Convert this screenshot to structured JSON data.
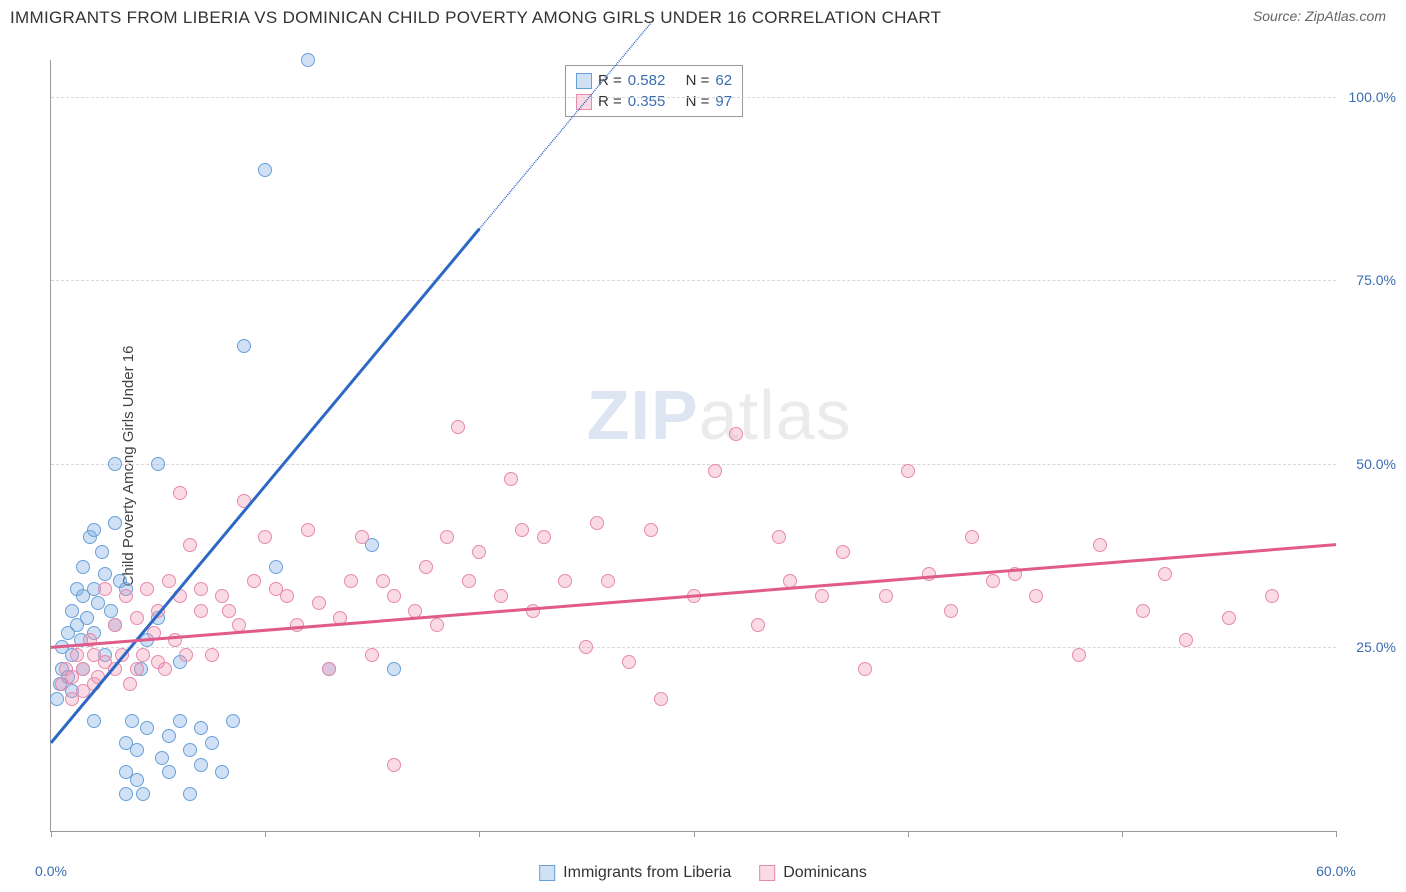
{
  "header": {
    "title": "IMMIGRANTS FROM LIBERIA VS DOMINICAN CHILD POVERTY AMONG GIRLS UNDER 16 CORRELATION CHART",
    "source_prefix": "Source: ",
    "source": "ZipAtlas.com"
  },
  "watermark": {
    "zip": "ZIP",
    "atlas": "atlas"
  },
  "y_axis": {
    "label": "Child Poverty Among Girls Under 16"
  },
  "chart": {
    "type": "scatter",
    "xlim": [
      0,
      60
    ],
    "ylim": [
      0,
      105
    ],
    "x_ticks": [
      0,
      10,
      20,
      30,
      40,
      50,
      60
    ],
    "x_tick_labels": {
      "0": "0.0%",
      "60": "60.0%"
    },
    "y_gridlines": [
      25,
      50,
      75,
      100
    ],
    "y_tick_labels": {
      "25": "25.0%",
      "50": "50.0%",
      "75": "75.0%",
      "100": "100.0%"
    },
    "background_color": "#ffffff",
    "grid_color": "#d8d8d8",
    "axis_color": "#999999",
    "marker_radius": 7,
    "series": [
      {
        "key": "liberia",
        "label": "Immigrants from Liberia",
        "color_fill": "rgba(120,170,225,0.35)",
        "color_stroke": "#6aa0d8",
        "r": "0.582",
        "n": "62",
        "trend": {
          "x1": 0,
          "y1": 12,
          "x2": 20,
          "y2": 82,
          "color": "#2d68c4",
          "dash_x2": 28,
          "dash_y2": 110
        },
        "points": [
          [
            0.3,
            18
          ],
          [
            0.4,
            20
          ],
          [
            0.5,
            22
          ],
          [
            0.5,
            25
          ],
          [
            0.8,
            21
          ],
          [
            0.8,
            27
          ],
          [
            1,
            19
          ],
          [
            1,
            24
          ],
          [
            1,
            30
          ],
          [
            1.2,
            28
          ],
          [
            1.2,
            33
          ],
          [
            1.4,
            26
          ],
          [
            1.5,
            22
          ],
          [
            1.5,
            36
          ],
          [
            1.5,
            32
          ],
          [
            1.7,
            29
          ],
          [
            1.8,
            40
          ],
          [
            2,
            27
          ],
          [
            2,
            33
          ],
          [
            2,
            41
          ],
          [
            2.2,
            31
          ],
          [
            2.4,
            38
          ],
          [
            2.5,
            24
          ],
          [
            2.5,
            35
          ],
          [
            2.8,
            30
          ],
          [
            3,
            42
          ],
          [
            3,
            28
          ],
          [
            3,
            50
          ],
          [
            3.2,
            34
          ],
          [
            3.5,
            33
          ],
          [
            3.5,
            12
          ],
          [
            3.5,
            8
          ],
          [
            3.8,
            15
          ],
          [
            4,
            11
          ],
          [
            4,
            7
          ],
          [
            4.2,
            22
          ],
          [
            4.5,
            26
          ],
          [
            4.5,
            14
          ],
          [
            5,
            29
          ],
          [
            5,
            50
          ],
          [
            5.2,
            10
          ],
          [
            5.5,
            13
          ],
          [
            5.5,
            8
          ],
          [
            6,
            15
          ],
          [
            6,
            23
          ],
          [
            6.5,
            5
          ],
          [
            6.5,
            11
          ],
          [
            7,
            9
          ],
          [
            7,
            14
          ],
          [
            7.5,
            12
          ],
          [
            8,
            8
          ],
          [
            8.5,
            15
          ],
          [
            9,
            66
          ],
          [
            10,
            90
          ],
          [
            10.5,
            36
          ],
          [
            12,
            105
          ],
          [
            13,
            22
          ],
          [
            15,
            39
          ],
          [
            16,
            22
          ],
          [
            2,
            15
          ],
          [
            3.5,
            5
          ],
          [
            4.3,
            5
          ]
        ]
      },
      {
        "key": "dominicans",
        "label": "Dominicans",
        "color_fill": "rgba(240,150,180,0.35)",
        "color_stroke": "#e68aac",
        "r": "0.355",
        "n": "97",
        "trend": {
          "x1": 0,
          "y1": 25,
          "x2": 60,
          "y2": 39,
          "color": "#e05a8a"
        },
        "points": [
          [
            0.5,
            20
          ],
          [
            0.7,
            22
          ],
          [
            1,
            18
          ],
          [
            1,
            21
          ],
          [
            1.2,
            24
          ],
          [
            1.5,
            19
          ],
          [
            1.5,
            22
          ],
          [
            1.8,
            26
          ],
          [
            2,
            20
          ],
          [
            2,
            24
          ],
          [
            2.2,
            21
          ],
          [
            2.5,
            33
          ],
          [
            2.5,
            23
          ],
          [
            3,
            22
          ],
          [
            3,
            28
          ],
          [
            3.3,
            24
          ],
          [
            3.5,
            32
          ],
          [
            3.7,
            20
          ],
          [
            4,
            29
          ],
          [
            4,
            22
          ],
          [
            4.3,
            24
          ],
          [
            4.5,
            33
          ],
          [
            4.8,
            27
          ],
          [
            5,
            23
          ],
          [
            5,
            30
          ],
          [
            5.3,
            22
          ],
          [
            5.5,
            34
          ],
          [
            5.8,
            26
          ],
          [
            6,
            32
          ],
          [
            6,
            46
          ],
          [
            6.3,
            24
          ],
          [
            6.5,
            39
          ],
          [
            7,
            30
          ],
          [
            7,
            33
          ],
          [
            7.5,
            24
          ],
          [
            8,
            32
          ],
          [
            8.3,
            30
          ],
          [
            8.8,
            28
          ],
          [
            9,
            45
          ],
          [
            9.5,
            34
          ],
          [
            10,
            40
          ],
          [
            10.5,
            33
          ],
          [
            11,
            32
          ],
          [
            11.5,
            28
          ],
          [
            12,
            41
          ],
          [
            12.5,
            31
          ],
          [
            13,
            22
          ],
          [
            13.5,
            29
          ],
          [
            14,
            34
          ],
          [
            14.5,
            40
          ],
          [
            15,
            24
          ],
          [
            15.5,
            34
          ],
          [
            16,
            32
          ],
          [
            16,
            9
          ],
          [
            17,
            30
          ],
          [
            17.5,
            36
          ],
          [
            18,
            28
          ],
          [
            18.5,
            40
          ],
          [
            19,
            55
          ],
          [
            19.5,
            34
          ],
          [
            20,
            38
          ],
          [
            21,
            32
          ],
          [
            21.5,
            48
          ],
          [
            22,
            41
          ],
          [
            22.5,
            30
          ],
          [
            23,
            40
          ],
          [
            24,
            34
          ],
          [
            25,
            25
          ],
          [
            25.5,
            42
          ],
          [
            26,
            34
          ],
          [
            27,
            23
          ],
          [
            28,
            41
          ],
          [
            28.5,
            18
          ],
          [
            30,
            32
          ],
          [
            31,
            49
          ],
          [
            32,
            54
          ],
          [
            33,
            28
          ],
          [
            34,
            40
          ],
          [
            34.5,
            34
          ],
          [
            36,
            32
          ],
          [
            37,
            38
          ],
          [
            38,
            22
          ],
          [
            39,
            32
          ],
          [
            40,
            49
          ],
          [
            41,
            35
          ],
          [
            42,
            30
          ],
          [
            43,
            40
          ],
          [
            44,
            34
          ],
          [
            45,
            35
          ],
          [
            46,
            32
          ],
          [
            48,
            24
          ],
          [
            49,
            39
          ],
          [
            51,
            30
          ],
          [
            52,
            35
          ],
          [
            53,
            26
          ],
          [
            55,
            29
          ],
          [
            57,
            32
          ]
        ]
      }
    ]
  },
  "legend_top": {
    "r_label": "R =",
    "n_label": "N ="
  }
}
